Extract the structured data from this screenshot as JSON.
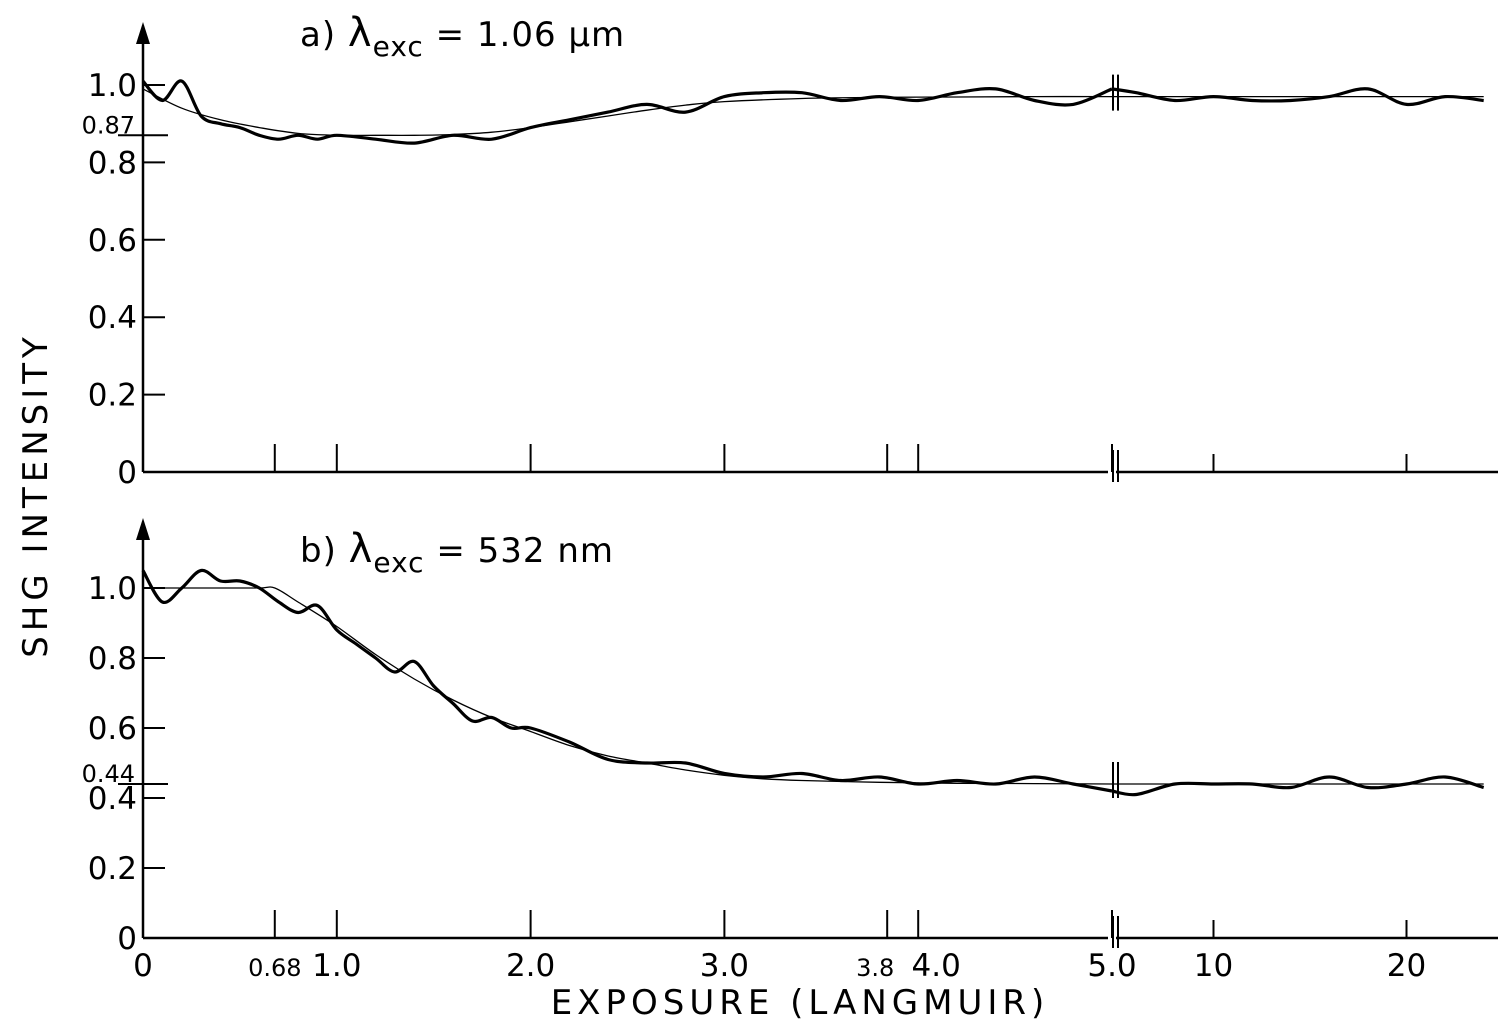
{
  "chart_data": [
    {
      "type": "line",
      "panel": "a",
      "title_prefix": "a)",
      "title_symbol": "λ",
      "title_subscript": "exc",
      "title_value": "= 1.06 μm",
      "ylabel": "SHG INTENSITY",
      "ylim": [
        0,
        1.1
      ],
      "y_ticks": [
        "0",
        "0.2",
        "0.4",
        "0.6",
        "0.8",
        "1.0"
      ],
      "y_marked_level": {
        "label": "0.87",
        "value": 0.87
      },
      "x_ticks_segment1": [
        0,
        0.68,
        1.0,
        2.0,
        3.0,
        3.84,
        4.0,
        5.0
      ],
      "x_ticks_segment2": [
        10,
        20
      ],
      "series": [
        {
          "role": "measured",
          "x": [
            0,
            0.1,
            0.2,
            0.3,
            0.4,
            0.5,
            0.6,
            0.7,
            0.8,
            0.9,
            1.0,
            1.2,
            1.4,
            1.6,
            1.8,
            2.0,
            2.2,
            2.4,
            2.6,
            2.8,
            3.0,
            3.2,
            3.4,
            3.6,
            3.8,
            4.0,
            4.2,
            4.4,
            4.6,
            4.8,
            5.0,
            6,
            8,
            10,
            12,
            14,
            16,
            18,
            20,
            22,
            24
          ],
          "y": [
            1.01,
            0.96,
            1.01,
            0.92,
            0.9,
            0.89,
            0.87,
            0.86,
            0.87,
            0.86,
            0.87,
            0.86,
            0.85,
            0.87,
            0.86,
            0.89,
            0.91,
            0.93,
            0.95,
            0.93,
            0.97,
            0.98,
            0.98,
            0.96,
            0.97,
            0.96,
            0.98,
            0.99,
            0.96,
            0.95,
            0.99,
            0.98,
            0.96,
            0.97,
            0.96,
            0.96,
            0.97,
            0.99,
            0.95,
            0.97,
            0.96
          ]
        },
        {
          "role": "fit",
          "x": [
            0,
            0.2,
            0.4,
            0.6,
            0.8,
            1.0,
            1.2,
            1.4,
            1.6,
            1.8,
            2.0,
            2.2,
            2.4,
            2.6,
            2.8,
            3.0,
            3.4,
            3.8,
            4.2,
            4.6,
            5.0,
            10,
            20,
            24
          ],
          "y": [
            0.99,
            0.94,
            0.91,
            0.89,
            0.875,
            0.87,
            0.87,
            0.87,
            0.872,
            0.878,
            0.89,
            0.905,
            0.92,
            0.935,
            0.948,
            0.957,
            0.965,
            0.968,
            0.969,
            0.97,
            0.97,
            0.97,
            0.97,
            0.97
          ]
        }
      ]
    },
    {
      "type": "line",
      "panel": "b",
      "title_prefix": "b)",
      "title_symbol": "λ",
      "title_subscript": "exc",
      "title_value": "= 532 nm",
      "xlabel": "EXPOSURE (LANGMUIR)",
      "ylim": [
        0,
        1.1
      ],
      "y_ticks": [
        "0",
        "0.2",
        "0.4",
        "0.6",
        "0.8",
        "1.0"
      ],
      "y_marked_level": {
        "label": "0.44",
        "value": 0.44
      },
      "x_tick_labels": [
        "0",
        "0.68",
        "1.0",
        "2.0",
        "3.0",
        "3.8",
        "4.0",
        "5.0",
        "10",
        "20"
      ],
      "x_ticks_segment1": [
        0,
        0.68,
        1.0,
        2.0,
        3.0,
        3.84,
        4.0,
        5.0
      ],
      "x_ticks_segment2": [
        10,
        20
      ],
      "series": [
        {
          "role": "measured",
          "x": [
            0,
            0.1,
            0.2,
            0.3,
            0.4,
            0.5,
            0.6,
            0.7,
            0.8,
            0.9,
            1.0,
            1.1,
            1.2,
            1.3,
            1.4,
            1.5,
            1.6,
            1.7,
            1.8,
            1.9,
            2.0,
            2.2,
            2.4,
            2.6,
            2.8,
            3.0,
            3.2,
            3.4,
            3.6,
            3.8,
            4.0,
            4.2,
            4.4,
            4.6,
            4.8,
            5.0,
            6,
            8,
            10,
            12,
            14,
            16,
            18,
            20,
            22,
            24
          ],
          "y": [
            1.05,
            0.96,
            1.0,
            1.05,
            1.02,
            1.02,
            1.0,
            0.96,
            0.93,
            0.95,
            0.88,
            0.84,
            0.8,
            0.76,
            0.79,
            0.72,
            0.67,
            0.62,
            0.63,
            0.6,
            0.6,
            0.56,
            0.51,
            0.5,
            0.5,
            0.47,
            0.46,
            0.47,
            0.45,
            0.46,
            0.44,
            0.45,
            0.44,
            0.46,
            0.44,
            0.42,
            0.41,
            0.44,
            0.44,
            0.44,
            0.43,
            0.46,
            0.43,
            0.44,
            0.46,
            0.43
          ]
        },
        {
          "role": "fit",
          "x": [
            0,
            0.2,
            0.4,
            0.6,
            0.68,
            0.8,
            1.0,
            1.2,
            1.4,
            1.6,
            1.8,
            2.0,
            2.2,
            2.4,
            2.6,
            2.8,
            3.0,
            3.2,
            3.4,
            3.8,
            4.2,
            4.6,
            5.0,
            10,
            20,
            24
          ],
          "y": [
            1.0,
            1.0,
            1.0,
            1.0,
            1.0,
            0.96,
            0.89,
            0.81,
            0.74,
            0.68,
            0.63,
            0.59,
            0.55,
            0.52,
            0.5,
            0.48,
            0.465,
            0.455,
            0.45,
            0.445,
            0.442,
            0.441,
            0.44,
            0.44,
            0.44,
            0.44
          ]
        }
      ]
    }
  ]
}
